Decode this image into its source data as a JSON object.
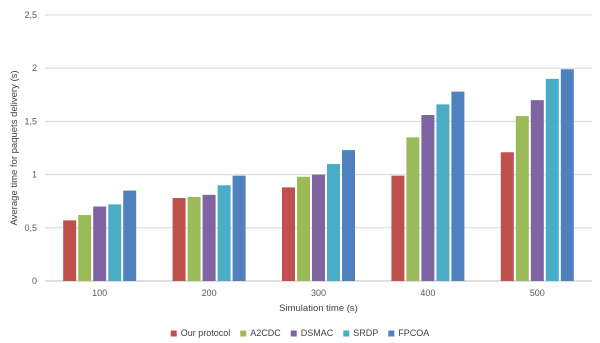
{
  "chart_data": {
    "type": "bar",
    "title": "",
    "xlabel": "Simulation time (s)",
    "ylabel": "Average time for paquets delivery (s)",
    "ylim": [
      0,
      2.5
    ],
    "yticks": [
      "0",
      "0,5",
      "1",
      "1,5",
      "2",
      "2,5"
    ],
    "ytick_values": [
      0,
      0.5,
      1,
      1.5,
      2,
      2.5
    ],
    "grid": "horizontal",
    "legend_position": "bottom",
    "categories": [
      "100",
      "200",
      "300",
      "400",
      "500"
    ],
    "series": [
      {
        "name": "Our protocol",
        "color": "#c0504d",
        "values": [
          0.57,
          0.78,
          0.88,
          0.99,
          1.21
        ]
      },
      {
        "name": "A2CDC",
        "color": "#9bbb59",
        "values": [
          0.62,
          0.79,
          0.98,
          1.35,
          1.55
        ]
      },
      {
        "name": "DSMAC",
        "color": "#8064a2",
        "values": [
          0.7,
          0.81,
          1.0,
          1.56,
          1.7
        ]
      },
      {
        "name": "SRDP",
        "color": "#4bacc6",
        "values": [
          0.72,
          0.9,
          1.1,
          1.66,
          1.9
        ]
      },
      {
        "name": "FPCOA",
        "color": "#4f81bd",
        "values": [
          0.85,
          0.99,
          1.23,
          1.78,
          1.99
        ]
      }
    ]
  }
}
